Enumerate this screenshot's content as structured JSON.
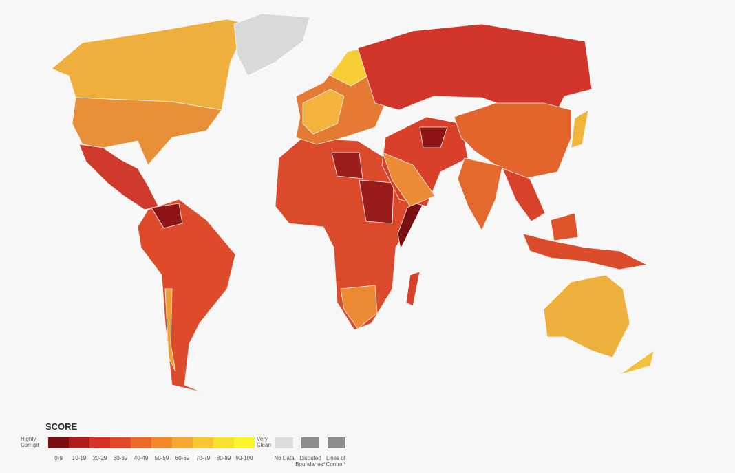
{
  "legend": {
    "title": "SCORE",
    "low_label": "Highly Corrupt",
    "high_label": "Very Clean",
    "bins": [
      {
        "label": "0-9",
        "color": "#7a0f12"
      },
      {
        "label": "10-19",
        "color": "#b01c1c"
      },
      {
        "label": "20-29",
        "color": "#d83127"
      },
      {
        "label": "30-39",
        "color": "#e34a2a"
      },
      {
        "label": "40-49",
        "color": "#ee6a2b"
      },
      {
        "label": "50-59",
        "color": "#f28a2d"
      },
      {
        "label": "60-69",
        "color": "#f4a830"
      },
      {
        "label": "70-79",
        "color": "#f7c630"
      },
      {
        "label": "80-89",
        "color": "#f9e22e"
      },
      {
        "label": "90-100",
        "color": "#fbf52c"
      }
    ],
    "no_data": "No Data",
    "disputed": "Disputed Boundaries*",
    "lines_of_control": "Lines of Control*"
  }
}
